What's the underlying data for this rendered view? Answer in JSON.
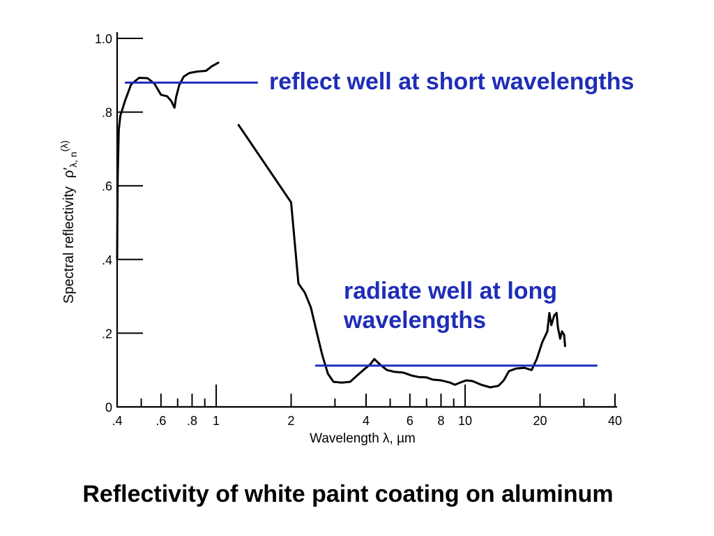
{
  "chart_data": {
    "type": "line",
    "title": "Reflectivity of white paint coating on aluminum",
    "xlabel": "Wavelength λ, µm",
    "ylabel": "Spectral reflectivity",
    "ylabel_symbol": {
      "base": "ρ′",
      "sub": "λ, n",
      "sup": "(λ)"
    },
    "x_scale": "log",
    "xlim": [
      0.4,
      40
    ],
    "ylim": [
      0,
      1.0
    ],
    "grid": false,
    "legend": "none",
    "x_ticks": [
      {
        "value": 0.4,
        "label": ".4"
      },
      {
        "value": 0.6,
        "label": ".6"
      },
      {
        "value": 0.8,
        "label": ".8"
      },
      {
        "value": 1,
        "label": "1"
      },
      {
        "value": 2,
        "label": "2"
      },
      {
        "value": 4,
        "label": "4"
      },
      {
        "value": 6,
        "label": "6"
      },
      {
        "value": 8,
        "label": "8"
      },
      {
        "value": 10,
        "label": "10"
      },
      {
        "value": 20,
        "label": "20"
      },
      {
        "value": 40,
        "label": "40"
      }
    ],
    "x_minor_ticks": [
      0.5,
      0.7,
      0.9,
      3,
      5,
      7,
      9,
      30
    ],
    "y_ticks": [
      {
        "value": 1.0,
        "label": "1.0"
      },
      {
        "value": 0.8,
        "label": ".8"
      },
      {
        "value": 0.6,
        "label": ".6"
      },
      {
        "value": 0.4,
        "label": ".4"
      },
      {
        "value": 0.2,
        "label": ".2"
      },
      {
        "value": 0,
        "label": "0"
      }
    ],
    "series": [
      {
        "segments": [
          {
            "x": [
              0.4,
              0.402,
              0.406,
              0.412,
              0.43,
              0.455,
              0.49,
              0.53,
              0.565,
              0.6,
              0.635,
              0.66,
              0.68,
              0.69,
              0.71,
              0.74,
              0.78,
              0.84,
              0.91,
              0.96,
              1.02
            ],
            "y": [
              0.4,
              0.62,
              0.75,
              0.79,
              0.83,
              0.875,
              0.893,
              0.892,
              0.877,
              0.847,
              0.843,
              0.83,
              0.812,
              0.84,
              0.873,
              0.896,
              0.906,
              0.91,
              0.912,
              0.924,
              0.934
            ]
          },
          {
            "x": [
              1.23,
              2.0,
              2.14,
              2.27,
              2.4,
              2.55,
              2.67,
              2.81,
              2.96,
              3.2,
              3.45,
              3.68,
              3.9,
              4.15,
              4.32,
              4.55,
              4.85,
              5.2,
              5.65,
              6.1,
              6.5,
              7.0,
              7.4,
              8.0,
              8.7,
              9.1,
              9.55,
              10.1,
              10.7,
              11.6,
              12.6,
              13.6,
              14.3,
              15.0,
              16.0,
              17.3,
              18.5,
              19.4,
              20.4,
              21.4,
              21.8,
              22.2,
              22.8,
              23.3,
              23.6,
              24.1,
              24.5,
              25.0,
              25.2
            ],
            "y": [
              0.765,
              0.555,
              0.335,
              0.31,
              0.27,
              0.195,
              0.14,
              0.09,
              0.068,
              0.066,
              0.068,
              0.085,
              0.1,
              0.115,
              0.13,
              0.115,
              0.1,
              0.095,
              0.093,
              0.085,
              0.081,
              0.08,
              0.074,
              0.072,
              0.066,
              0.06,
              0.066,
              0.072,
              0.07,
              0.06,
              0.053,
              0.057,
              0.072,
              0.097,
              0.104,
              0.106,
              0.1,
              0.13,
              0.175,
              0.205,
              0.255,
              0.222,
              0.248,
              0.255,
              0.215,
              0.185,
              0.205,
              0.195,
              0.165
            ]
          }
        ]
      }
    ],
    "annotations": [
      {
        "text_lines": [
          "reflect well at short wavelengths"
        ],
        "line": {
          "x": [
            0.43,
            1.47
          ],
          "y": 0.88
        }
      },
      {
        "text_lines": [
          "radiate well at long",
          "wavelengths"
        ],
        "line": {
          "x": [
            2.5,
            34
          ],
          "y": 0.112
        }
      }
    ]
  },
  "colors": {
    "background": "#ffffff",
    "ink": "#000000",
    "annotation": "#1f2db8"
  }
}
